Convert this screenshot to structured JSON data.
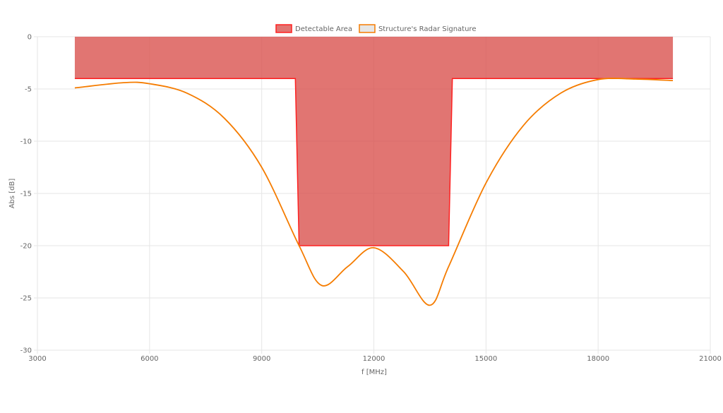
{
  "chart_data": {
    "type": "area",
    "title": "",
    "xlabel": "f [MHz]",
    "ylabel": "Abs [dB]",
    "xlim": [
      3000,
      21000
    ],
    "ylim": [
      -30,
      0
    ],
    "xticks": [
      3000,
      6000,
      9000,
      12000,
      15000,
      18000,
      21000
    ],
    "yticks": [
      0,
      -5,
      -10,
      -15,
      -20,
      -25,
      -30
    ],
    "grid": true,
    "legend_position": "top-center",
    "series": [
      {
        "name": "Detectable Area",
        "kind": "filled-area",
        "fill_color": "#d9534f",
        "line_color": "#ff2020",
        "upper": 0,
        "lower": [
          [
            4000,
            -4
          ],
          [
            9900,
            -4
          ],
          [
            10000,
            -20
          ],
          [
            14000,
            -20
          ],
          [
            14100,
            -4
          ],
          [
            20000,
            -4
          ]
        ]
      },
      {
        "name": "Structure's Radar Signature",
        "kind": "line",
        "line_color": "#f57c00",
        "points": [
          [
            4000,
            -4.9
          ],
          [
            5300,
            -4.4
          ],
          [
            6000,
            -4.5
          ],
          [
            7000,
            -5.4
          ],
          [
            8000,
            -7.8
          ],
          [
            9000,
            -12.5
          ],
          [
            10000,
            -20
          ],
          [
            10600,
            -23.8
          ],
          [
            11300,
            -22
          ],
          [
            12000,
            -20.2
          ],
          [
            12800,
            -22.5
          ],
          [
            13500,
            -25.7
          ],
          [
            14000,
            -22
          ],
          [
            15000,
            -14
          ],
          [
            16000,
            -8.5
          ],
          [
            17000,
            -5.4
          ],
          [
            18000,
            -4.1
          ],
          [
            19000,
            -4.05
          ],
          [
            20000,
            -4.2
          ]
        ]
      }
    ]
  }
}
